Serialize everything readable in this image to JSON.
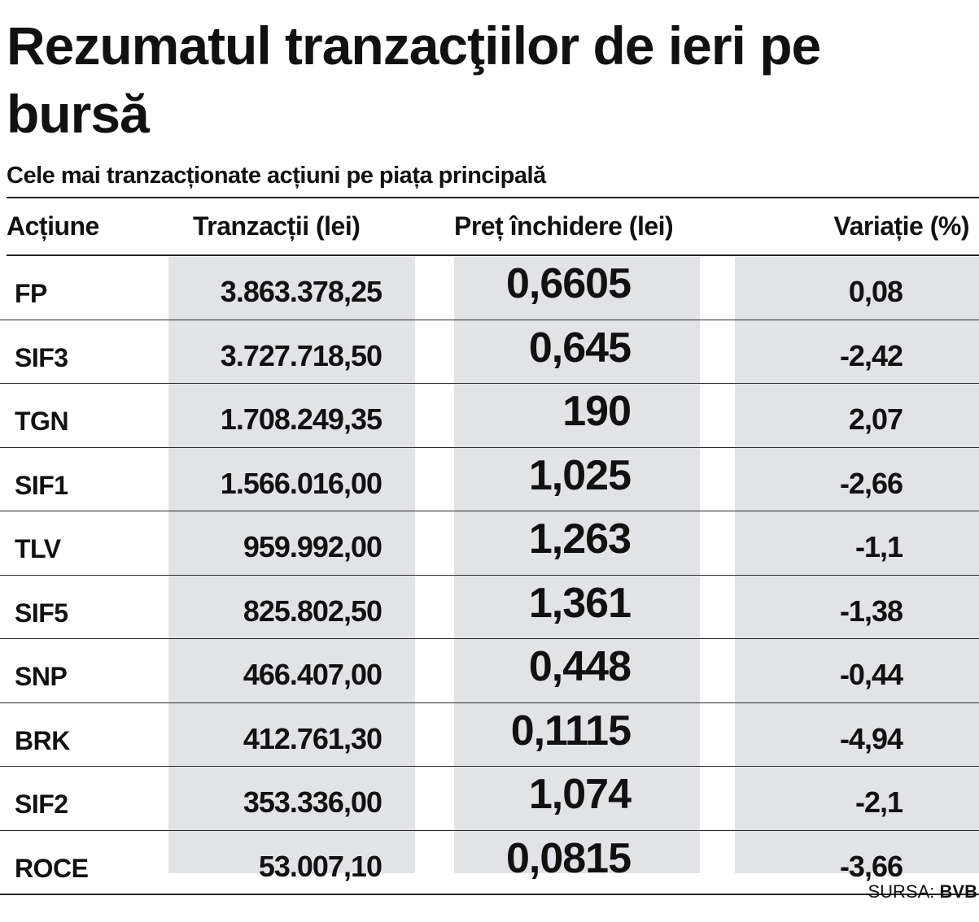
{
  "title": "Rezumatul tranzacţiilor de ieri pe bursă",
  "subtitle": "Cele mai tranzacționate acțiuni pe piața principală",
  "columns": [
    "Acțiune",
    "Tranzacții (lei)",
    "Preț închidere (lei)",
    "Variație (%)"
  ],
  "rows": [
    {
      "symbol": "FP",
      "trades": "3.863.378,25",
      "close": "0,6605",
      "change": "0,08"
    },
    {
      "symbol": "SIF3",
      "trades": "3.727.718,50",
      "close": "0,645",
      "change": "-2,42"
    },
    {
      "symbol": "TGN",
      "trades": "1.708.249,35",
      "close": "190",
      "change": "2,07"
    },
    {
      "symbol": "SIF1",
      "trades": "1.566.016,00",
      "close": "1,025",
      "change": "-2,66"
    },
    {
      "symbol": "TLV",
      "trades": "959.992,00",
      "close": "1,263",
      "change": "-1,1"
    },
    {
      "symbol": "SIF5",
      "trades": "825.802,50",
      "close": "1,361",
      "change": "-1,38"
    },
    {
      "symbol": "SNP",
      "trades": "466.407,00",
      "close": "0,448",
      "change": "-0,44"
    },
    {
      "symbol": "BRK",
      "trades": "412.761,30",
      "close": "0,1115",
      "change": "-4,94"
    },
    {
      "symbol": "SIF2",
      "trades": "353.336,00",
      "close": "1,074",
      "change": "-2,1"
    },
    {
      "symbol": "ROCE",
      "trades": "53.007,10",
      "close": "0,0815",
      "change": "-3,66"
    }
  ],
  "source": {
    "label": "SURSA:",
    "name": "BVB"
  },
  "colors": {
    "column_shade": "#e2e3e7",
    "text": "#111111"
  }
}
